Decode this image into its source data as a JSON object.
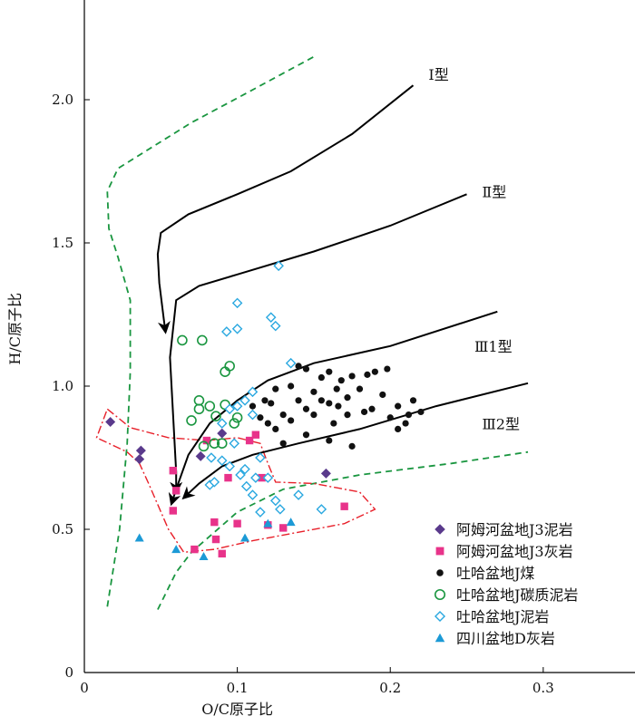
{
  "chart_data": {
    "type": "scatter",
    "xlabel": "O/C原子比",
    "ylabel": "H/C原子比",
    "xlim": [
      0,
      0.36
    ],
    "ylim": [
      0,
      2.35
    ],
    "xticks": [
      0,
      0.1,
      0.2,
      0.3
    ],
    "xtick_labels": [
      "0",
      "0.1",
      "0.2",
      "0.3"
    ],
    "yticks": [
      0,
      0.5,
      1.0,
      1.5,
      2.0
    ],
    "ytick_labels": [
      "0",
      "0.5",
      "1.0",
      "1.5",
      "2.0"
    ],
    "curves": [
      {
        "name": "Ⅰ型",
        "label": "Ⅰ型",
        "label_at": [
          0.225,
          2.07
        ],
        "points": [
          [
            0.215,
            2.05
          ],
          [
            0.175,
            1.88
          ],
          [
            0.135,
            1.75
          ],
          [
            0.1,
            1.67
          ],
          [
            0.068,
            1.6
          ],
          [
            0.05,
            1.535
          ],
          [
            0.048,
            1.46
          ],
          [
            0.049,
            1.36
          ],
          [
            0.052,
            1.23
          ],
          [
            0.053,
            1.19
          ]
        ]
      },
      {
        "name": "Ⅱ型",
        "label": "Ⅱ型",
        "label_at": [
          0.26,
          1.66
        ],
        "points": [
          [
            0.25,
            1.67
          ],
          [
            0.2,
            1.56
          ],
          [
            0.15,
            1.47
          ],
          [
            0.1,
            1.39
          ],
          [
            0.075,
            1.35
          ],
          [
            0.06,
            1.3
          ],
          [
            0.056,
            1.1
          ],
          [
            0.058,
            0.9
          ],
          [
            0.06,
            0.7
          ],
          [
            0.06,
            0.63
          ]
        ]
      },
      {
        "name": "Ⅲ1型",
        "label": "Ⅲ1型",
        "label_at": [
          0.255,
          1.12
        ],
        "points": [
          [
            0.27,
            1.26
          ],
          [
            0.2,
            1.14
          ],
          [
            0.15,
            1.08
          ],
          [
            0.12,
            1.02
          ],
          [
            0.1,
            0.95
          ],
          [
            0.082,
            0.87
          ],
          [
            0.068,
            0.76
          ],
          [
            0.06,
            0.64
          ],
          [
            0.057,
            0.59
          ]
        ]
      },
      {
        "name": "Ⅲ2型",
        "label": "Ⅲ2型",
        "label_at": [
          0.26,
          0.85
        ],
        "points": [
          [
            0.29,
            1.01
          ],
          [
            0.23,
            0.93
          ],
          [
            0.18,
            0.85
          ],
          [
            0.14,
            0.8
          ],
          [
            0.11,
            0.76
          ],
          [
            0.09,
            0.72
          ],
          [
            0.075,
            0.66
          ],
          [
            0.065,
            0.61
          ]
        ]
      }
    ],
    "envelope_green": [
      [
        [
          0.015,
          0.23
        ],
        [
          0.023,
          0.5
        ],
        [
          0.028,
          0.8
        ],
        [
          0.03,
          1.05
        ],
        [
          0.03,
          1.3
        ],
        [
          0.022,
          1.45
        ],
        [
          0.016,
          1.55
        ],
        [
          0.015,
          1.68
        ],
        [
          0.022,
          1.76
        ],
        [
          0.04,
          1.82
        ],
        [
          0.07,
          1.92
        ],
        [
          0.105,
          2.02
        ],
        [
          0.15,
          2.15
        ]
      ],
      [
        [
          0.048,
          0.22
        ],
        [
          0.06,
          0.35
        ],
        [
          0.07,
          0.42
        ],
        [
          0.085,
          0.49
        ],
        [
          0.1,
          0.56
        ],
        [
          0.13,
          0.64
        ],
        [
          0.18,
          0.69
        ],
        [
          0.24,
          0.73
        ],
        [
          0.29,
          0.77
        ]
      ]
    ],
    "envelope_red": [
      [
        0.015,
        0.92
      ],
      [
        0.03,
        0.855
      ],
      [
        0.055,
        0.82
      ],
      [
        0.08,
        0.81
      ],
      [
        0.1,
        0.82
      ],
      [
        0.115,
        0.8
      ],
      [
        0.12,
        0.73
      ],
      [
        0.125,
        0.665
      ],
      [
        0.15,
        0.66
      ],
      [
        0.18,
        0.63
      ],
      [
        0.19,
        0.57
      ],
      [
        0.17,
        0.52
      ],
      [
        0.14,
        0.49
      ],
      [
        0.11,
        0.46
      ],
      [
        0.085,
        0.43
      ],
      [
        0.065,
        0.42
      ],
      [
        0.055,
        0.5
      ],
      [
        0.042,
        0.66
      ],
      [
        0.036,
        0.73
      ],
      [
        0.028,
        0.77
      ],
      [
        0.008,
        0.82
      ],
      [
        0.015,
        0.92
      ]
    ],
    "series": [
      {
        "name": "阿姆河盆地J3泥岩",
        "marker": "diamond",
        "color": "#5a3a8c",
        "points": [
          [
            0.017,
            0.875
          ],
          [
            0.037,
            0.775
          ],
          [
            0.036,
            0.745
          ],
          [
            0.076,
            0.755
          ],
          [
            0.09,
            0.835
          ],
          [
            0.158,
            0.695
          ]
        ]
      },
      {
        "name": "阿姆河盆地J3灰岩",
        "marker": "square",
        "color": "#e8338a",
        "points": [
          [
            0.058,
            0.705
          ],
          [
            0.06,
            0.635
          ],
          [
            0.058,
            0.565
          ],
          [
            0.08,
            0.81
          ],
          [
            0.094,
            0.68
          ],
          [
            0.112,
            0.83
          ],
          [
            0.116,
            0.68
          ],
          [
            0.085,
            0.525
          ],
          [
            0.1,
            0.52
          ],
          [
            0.086,
            0.465
          ],
          [
            0.12,
            0.515
          ],
          [
            0.13,
            0.505
          ],
          [
            0.072,
            0.43
          ],
          [
            0.09,
            0.415
          ],
          [
            0.17,
            0.58
          ],
          [
            0.108,
            0.81
          ]
        ]
      },
      {
        "name": "吐哈盆地J煤",
        "marker": "circle",
        "color": "#111111",
        "points": [
          [
            0.11,
            0.93
          ],
          [
            0.118,
            0.95
          ],
          [
            0.125,
            0.99
          ],
          [
            0.13,
            0.9
          ],
          [
            0.135,
            1.0
          ],
          [
            0.14,
            1.07
          ],
          [
            0.145,
            1.06
          ],
          [
            0.15,
            0.98
          ],
          [
            0.155,
            0.95
          ],
          [
            0.16,
            1.05
          ],
          [
            0.165,
            0.99
          ],
          [
            0.168,
            1.02
          ],
          [
            0.175,
            1.035
          ],
          [
            0.18,
            0.99
          ],
          [
            0.185,
            1.04
          ],
          [
            0.19,
            1.05
          ],
          [
            0.195,
            0.97
          ],
          [
            0.183,
            0.91
          ],
          [
            0.172,
            0.9
          ],
          [
            0.163,
            0.87
          ],
          [
            0.15,
            0.9
          ],
          [
            0.145,
            0.83
          ],
          [
            0.16,
            0.81
          ],
          [
            0.175,
            0.79
          ],
          [
            0.2,
            0.89
          ],
          [
            0.205,
            0.93
          ],
          [
            0.21,
            0.87
          ],
          [
            0.212,
            0.9
          ],
          [
            0.215,
            0.95
          ],
          [
            0.22,
            0.91
          ],
          [
            0.205,
            0.85
          ],
          [
            0.12,
            0.87
          ],
          [
            0.125,
            0.85
          ],
          [
            0.13,
            0.8
          ],
          [
            0.115,
            0.89
          ],
          [
            0.14,
            0.95
          ],
          [
            0.155,
            1.03
          ],
          [
            0.188,
            0.92
          ],
          [
            0.198,
            1.06
          ],
          [
            0.172,
            0.96
          ],
          [
            0.166,
            0.93
          ],
          [
            0.122,
            0.94
          ],
          [
            0.135,
            0.88
          ],
          [
            0.16,
            0.94
          ],
          [
            0.145,
            0.92
          ]
        ]
      },
      {
        "name": "吐哈盆地J碳质泥岩",
        "marker": "open-circle",
        "color": "#1a9640",
        "points": [
          [
            0.064,
            1.16
          ],
          [
            0.077,
            1.16
          ],
          [
            0.092,
            1.05
          ],
          [
            0.095,
            1.07
          ],
          [
            0.075,
            0.95
          ],
          [
            0.082,
            0.93
          ],
          [
            0.075,
            0.92
          ],
          [
            0.086,
            0.895
          ],
          [
            0.07,
            0.88
          ],
          [
            0.092,
            0.935
          ],
          [
            0.1,
            0.89
          ],
          [
            0.098,
            0.87
          ],
          [
            0.085,
            0.8
          ],
          [
            0.09,
            0.8
          ],
          [
            0.078,
            0.79
          ]
        ]
      },
      {
        "name": "吐哈盆地J泥岩",
        "marker": "open-diamond",
        "color": "#2aa8e0",
        "points": [
          [
            0.127,
            1.42
          ],
          [
            0.1,
            1.29
          ],
          [
            0.1,
            1.2
          ],
          [
            0.093,
            1.19
          ],
          [
            0.122,
            1.24
          ],
          [
            0.125,
            1.21
          ],
          [
            0.135,
            1.08
          ],
          [
            0.11,
            0.98
          ],
          [
            0.105,
            0.95
          ],
          [
            0.1,
            0.93
          ],
          [
            0.095,
            0.92
          ],
          [
            0.11,
            0.9
          ],
          [
            0.09,
            0.87
          ],
          [
            0.098,
            0.8
          ],
          [
            0.083,
            0.75
          ],
          [
            0.09,
            0.74
          ],
          [
            0.095,
            0.72
          ],
          [
            0.102,
            0.69
          ],
          [
            0.082,
            0.655
          ],
          [
            0.085,
            0.665
          ],
          [
            0.106,
            0.65
          ],
          [
            0.112,
            0.68
          ],
          [
            0.12,
            0.68
          ],
          [
            0.125,
            0.6
          ],
          [
            0.11,
            0.62
          ],
          [
            0.14,
            0.62
          ],
          [
            0.155,
            0.57
          ],
          [
            0.128,
            0.57
          ],
          [
            0.115,
            0.56
          ],
          [
            0.105,
            0.71
          ],
          [
            0.115,
            0.75
          ]
        ]
      },
      {
        "name": "四川盆地D灰岩",
        "marker": "triangle",
        "color": "#1c9ad6",
        "points": [
          [
            0.036,
            0.47
          ],
          [
            0.06,
            0.43
          ],
          [
            0.078,
            0.405
          ],
          [
            0.105,
            0.47
          ],
          [
            0.12,
            0.52
          ],
          [
            0.135,
            0.525
          ]
        ]
      }
    ],
    "legend": {
      "placement": "bottom-right"
    }
  }
}
